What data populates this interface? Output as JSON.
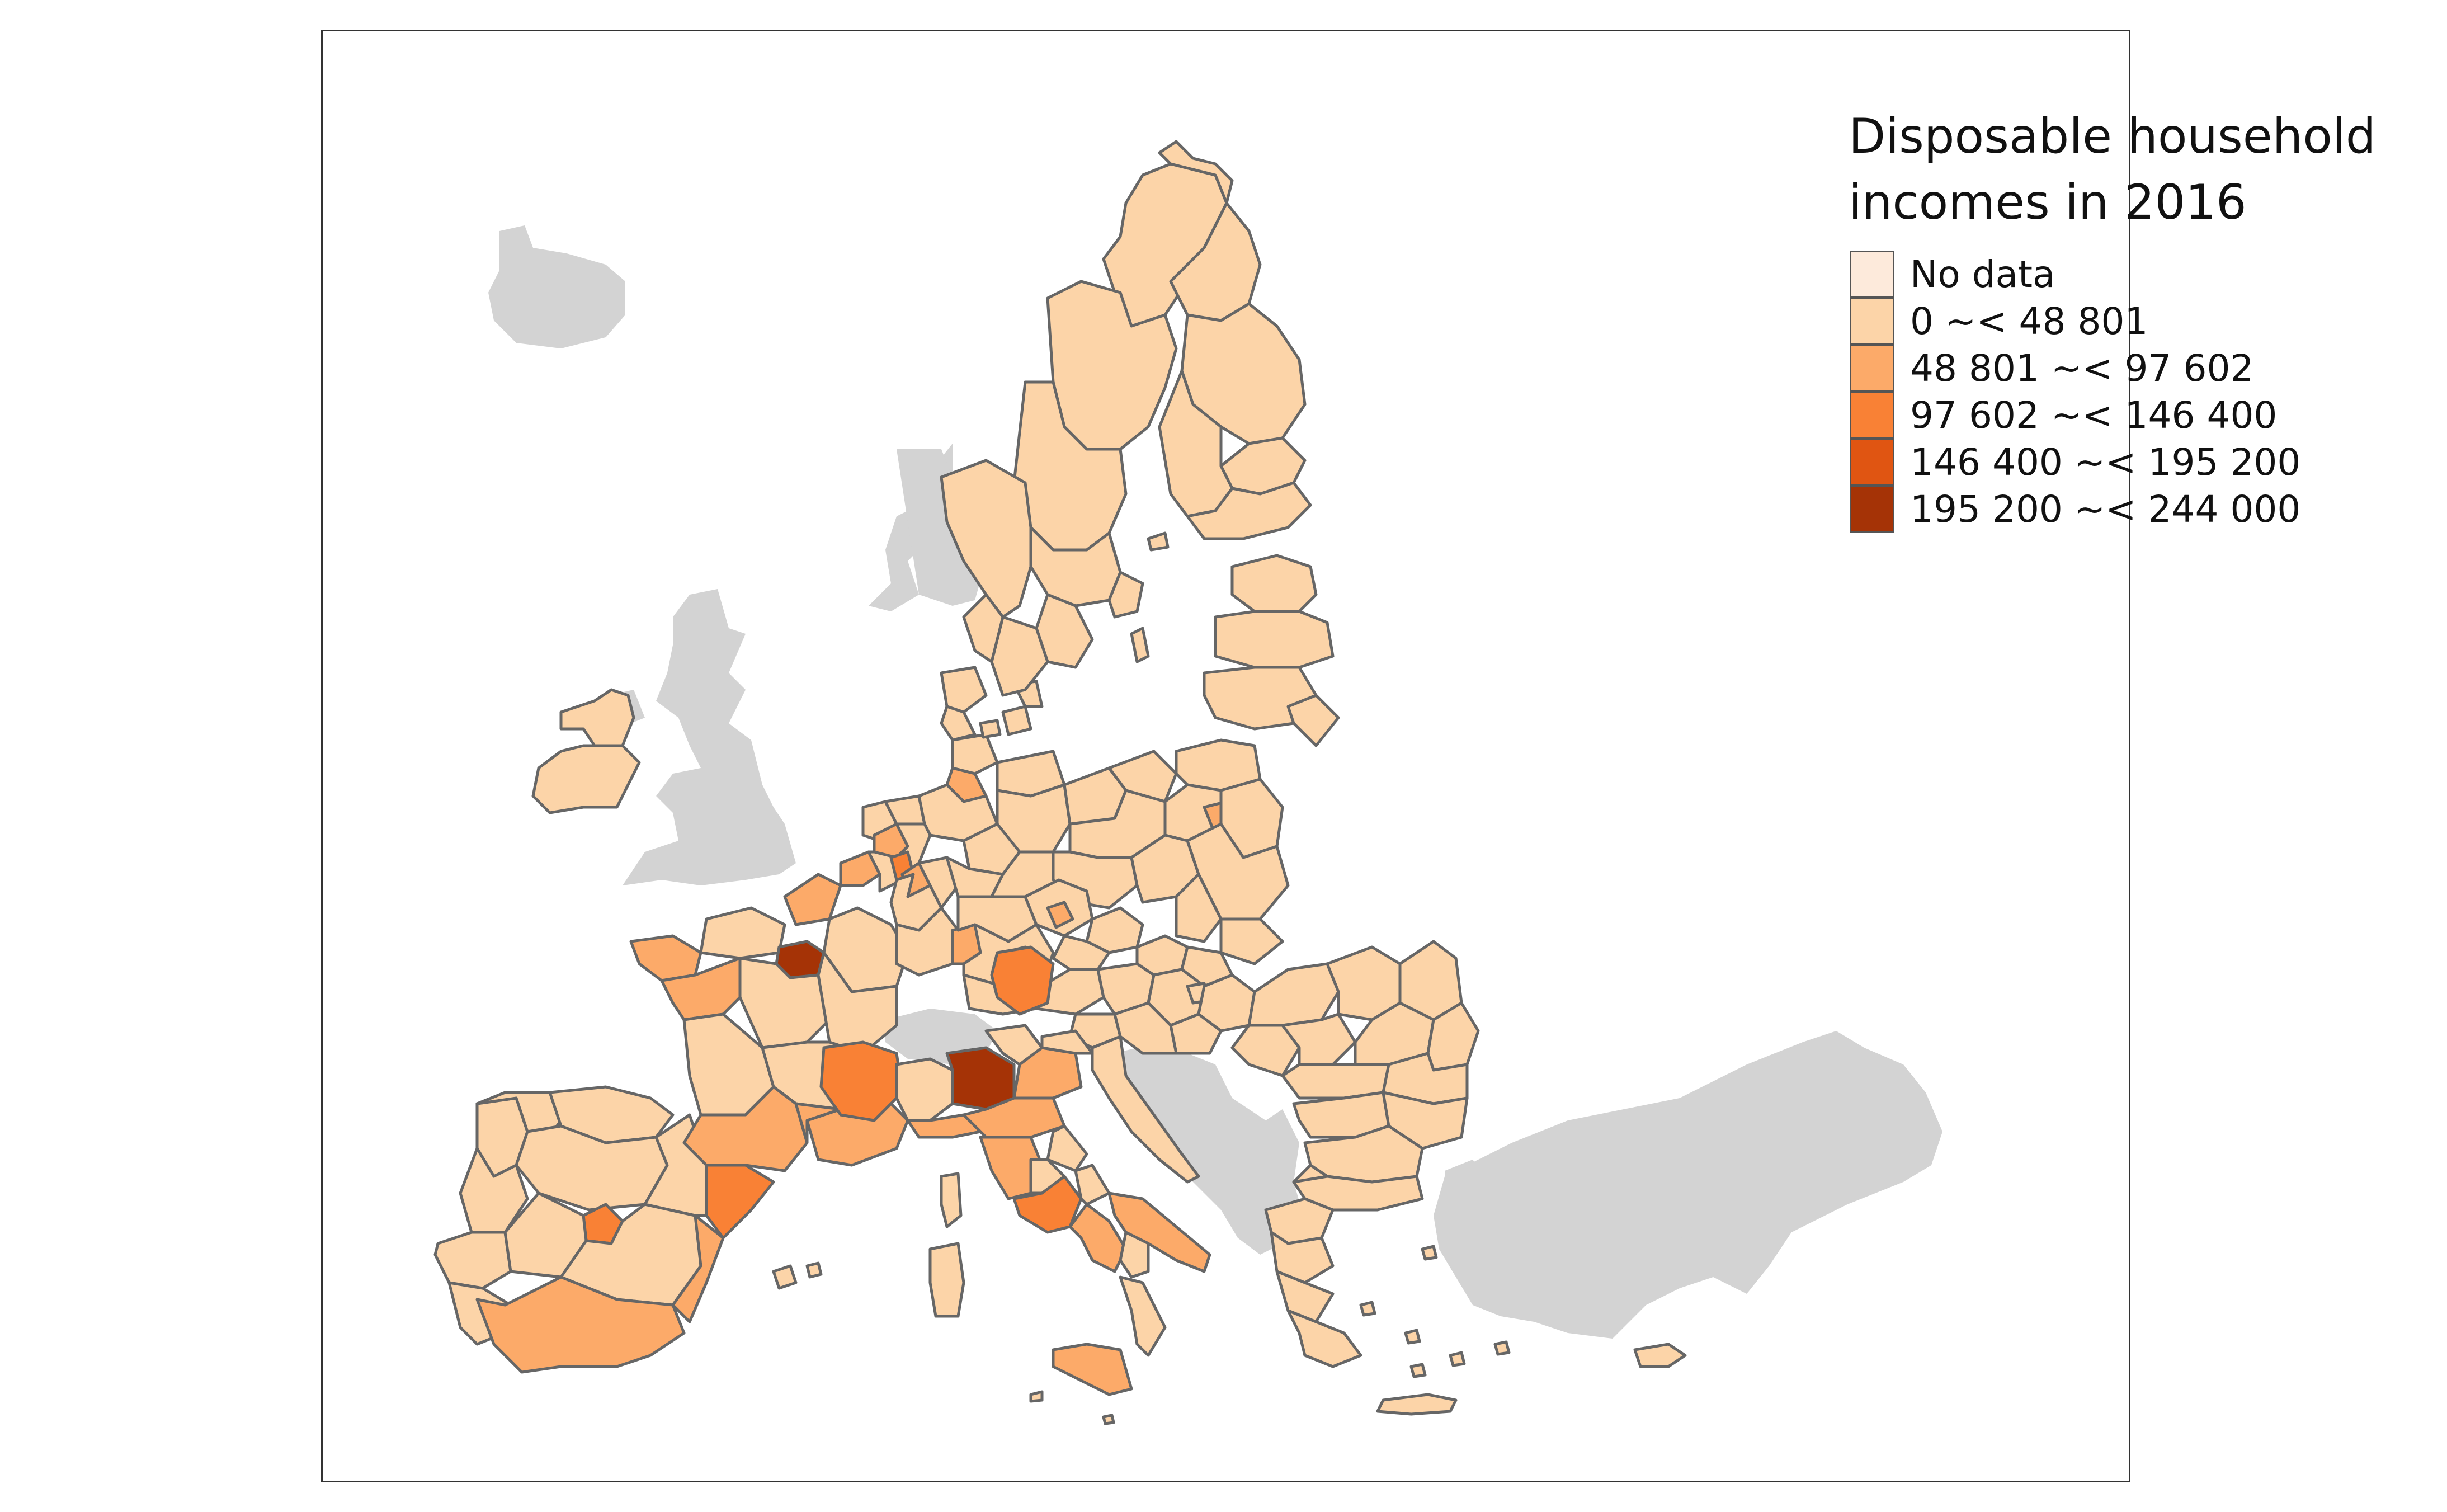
{
  "map": {
    "legend": {
      "title_line1": "Disposable household",
      "title_line2": "incomes in 2016",
      "items": [
        {
          "label": "No data",
          "color": "#fdeadb"
        },
        {
          "label": "0 ~< 48 801",
          "color": "#fcd4a8"
        },
        {
          "label": "48 801 ~< 97 602",
          "color": "#fcaa69"
        },
        {
          "label": "97 602 ~< 146 400",
          "color": "#f98135"
        },
        {
          "label": "146 400 ~< 195 200",
          "color": "#e05512"
        },
        {
          "label": "195 200 ~< 244 000",
          "color": "#a53306"
        }
      ]
    },
    "colors": {
      "non_eu_land": "#d3d3d3",
      "region_border": "#666666",
      "frame": "#333333"
    }
  }
}
